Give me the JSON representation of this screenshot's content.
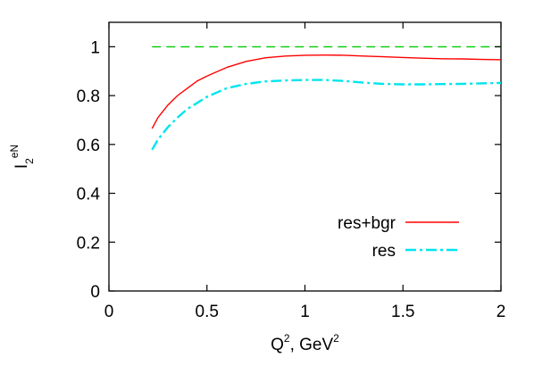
{
  "chart_data": {
    "type": "line",
    "title": "",
    "xlabel": {
      "base": "Q",
      "sup": "2",
      "mid": ", GeV",
      "sup2": "2"
    },
    "ylabel": {
      "base": "I",
      "sub": "2",
      "sup": "eN"
    },
    "xlim": [
      0,
      2
    ],
    "ylim": [
      0,
      1.1
    ],
    "xticks": [
      "0",
      "0.5",
      "1",
      "1.5",
      "2"
    ],
    "yticks": [
      "0",
      "0.2",
      "0.4",
      "0.6",
      "0.8",
      "1"
    ],
    "legend_position": "bottom-right",
    "grid": false,
    "series": [
      {
        "name": "res+bgr",
        "color": "#ff0000",
        "style": "solid",
        "x": [
          0.22,
          0.25,
          0.3,
          0.35,
          0.4,
          0.45,
          0.5,
          0.6,
          0.7,
          0.8,
          0.9,
          1.0,
          1.1,
          1.2,
          1.3,
          1.4,
          1.5,
          1.6,
          1.7,
          1.8,
          1.9,
          2.0
        ],
        "values": [
          0.665,
          0.71,
          0.76,
          0.8,
          0.83,
          0.86,
          0.88,
          0.915,
          0.94,
          0.955,
          0.962,
          0.965,
          0.966,
          0.965,
          0.962,
          0.959,
          0.956,
          0.953,
          0.951,
          0.95,
          0.948,
          0.947
        ]
      },
      {
        "name": "res",
        "color": "#00e5ee",
        "style": "dashdot",
        "x": [
          0.22,
          0.25,
          0.3,
          0.35,
          0.4,
          0.45,
          0.5,
          0.6,
          0.7,
          0.8,
          0.9,
          1.0,
          1.1,
          1.2,
          1.3,
          1.4,
          1.5,
          1.6,
          1.7,
          1.8,
          1.9,
          2.0
        ],
        "values": [
          0.578,
          0.62,
          0.67,
          0.71,
          0.745,
          0.77,
          0.795,
          0.83,
          0.848,
          0.858,
          0.862,
          0.864,
          0.864,
          0.86,
          0.853,
          0.848,
          0.846,
          0.846,
          0.847,
          0.848,
          0.85,
          0.852
        ]
      },
      {
        "name": "",
        "color": "#00cc00",
        "style": "dashed",
        "x": [
          0.22,
          2.0
        ],
        "values": [
          1.0,
          1.0
        ]
      }
    ]
  }
}
